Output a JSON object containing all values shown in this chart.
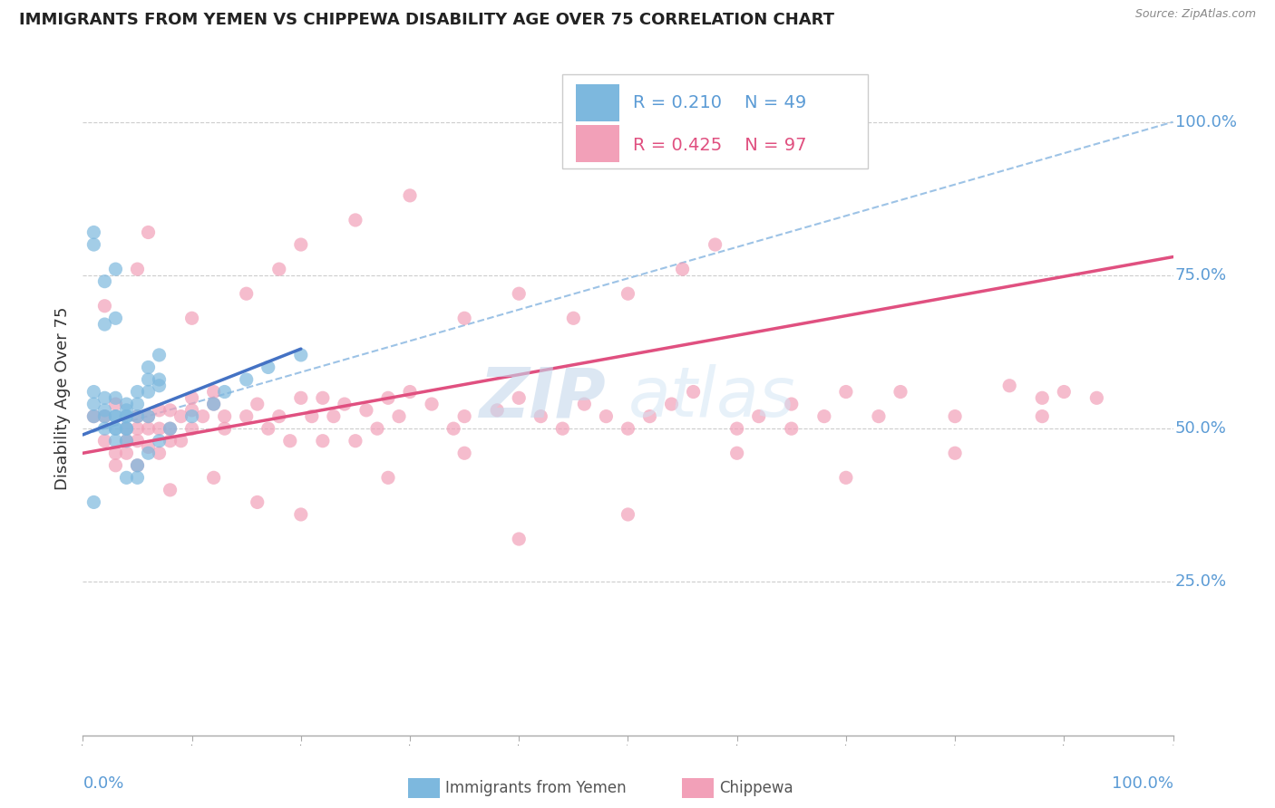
{
  "title": "IMMIGRANTS FROM YEMEN VS CHIPPEWA DISABILITY AGE OVER 75 CORRELATION CHART",
  "source": "Source: ZipAtlas.com",
  "ylabel": "Disability Age Over 75",
  "color_blue": "#7db8de",
  "color_pink": "#f2a0b8",
  "color_blue_line": "#4472c4",
  "color_pink_line": "#e05080",
  "color_dashed": "#9dc3e6",
  "watermark_zip": "ZIP",
  "watermark_atlas": "atlas",
  "blue_points": [
    [
      0.01,
      0.52
    ],
    [
      0.01,
      0.54
    ],
    [
      0.01,
      0.56
    ],
    [
      0.02,
      0.52
    ],
    [
      0.02,
      0.5
    ],
    [
      0.02,
      0.53
    ],
    [
      0.02,
      0.55
    ],
    [
      0.03,
      0.5
    ],
    [
      0.03,
      0.48
    ],
    [
      0.03,
      0.52
    ],
    [
      0.03,
      0.5
    ],
    [
      0.03,
      0.55
    ],
    [
      0.03,
      0.52
    ],
    [
      0.04,
      0.5
    ],
    [
      0.04,
      0.48
    ],
    [
      0.04,
      0.54
    ],
    [
      0.04,
      0.5
    ],
    [
      0.04,
      0.52
    ],
    [
      0.04,
      0.53
    ],
    [
      0.04,
      0.52
    ],
    [
      0.05,
      0.52
    ],
    [
      0.05,
      0.54
    ],
    [
      0.05,
      0.56
    ],
    [
      0.06,
      0.52
    ],
    [
      0.06,
      0.58
    ],
    [
      0.06,
      0.6
    ],
    [
      0.06,
      0.56
    ],
    [
      0.07,
      0.58
    ],
    [
      0.07,
      0.62
    ],
    [
      0.07,
      0.57
    ],
    [
      0.02,
      0.67
    ],
    [
      0.02,
      0.74
    ],
    [
      0.01,
      0.8
    ],
    [
      0.03,
      0.68
    ],
    [
      0.03,
      0.76
    ],
    [
      0.04,
      0.42
    ],
    [
      0.05,
      0.44
    ],
    [
      0.05,
      0.42
    ],
    [
      0.06,
      0.46
    ],
    [
      0.07,
      0.48
    ],
    [
      0.08,
      0.5
    ],
    [
      0.1,
      0.52
    ],
    [
      0.12,
      0.54
    ],
    [
      0.13,
      0.56
    ],
    [
      0.15,
      0.58
    ],
    [
      0.17,
      0.6
    ],
    [
      0.2,
      0.62
    ],
    [
      0.01,
      0.82
    ],
    [
      0.01,
      0.38
    ]
  ],
  "pink_points": [
    [
      0.01,
      0.52
    ],
    [
      0.02,
      0.48
    ],
    [
      0.02,
      0.52
    ],
    [
      0.03,
      0.46
    ],
    [
      0.03,
      0.54
    ],
    [
      0.03,
      0.44
    ],
    [
      0.04,
      0.5
    ],
    [
      0.04,
      0.48
    ],
    [
      0.04,
      0.46
    ],
    [
      0.05,
      0.52
    ],
    [
      0.05,
      0.48
    ],
    [
      0.05,
      0.5
    ],
    [
      0.05,
      0.44
    ],
    [
      0.06,
      0.52
    ],
    [
      0.06,
      0.5
    ],
    [
      0.06,
      0.47
    ],
    [
      0.07,
      0.46
    ],
    [
      0.07,
      0.53
    ],
    [
      0.07,
      0.5
    ],
    [
      0.08,
      0.53
    ],
    [
      0.08,
      0.48
    ],
    [
      0.08,
      0.5
    ],
    [
      0.09,
      0.52
    ],
    [
      0.09,
      0.48
    ],
    [
      0.1,
      0.53
    ],
    [
      0.1,
      0.5
    ],
    [
      0.1,
      0.55
    ],
    [
      0.11,
      0.52
    ],
    [
      0.12,
      0.56
    ],
    [
      0.12,
      0.54
    ],
    [
      0.13,
      0.5
    ],
    [
      0.13,
      0.52
    ],
    [
      0.15,
      0.52
    ],
    [
      0.16,
      0.54
    ],
    [
      0.17,
      0.5
    ],
    [
      0.18,
      0.52
    ],
    [
      0.19,
      0.48
    ],
    [
      0.2,
      0.55
    ],
    [
      0.21,
      0.52
    ],
    [
      0.22,
      0.55
    ],
    [
      0.22,
      0.48
    ],
    [
      0.23,
      0.52
    ],
    [
      0.24,
      0.54
    ],
    [
      0.25,
      0.48
    ],
    [
      0.26,
      0.53
    ],
    [
      0.27,
      0.5
    ],
    [
      0.28,
      0.55
    ],
    [
      0.29,
      0.52
    ],
    [
      0.3,
      0.56
    ],
    [
      0.32,
      0.54
    ],
    [
      0.34,
      0.5
    ],
    [
      0.35,
      0.52
    ],
    [
      0.38,
      0.53
    ],
    [
      0.4,
      0.55
    ],
    [
      0.42,
      0.52
    ],
    [
      0.44,
      0.5
    ],
    [
      0.46,
      0.54
    ],
    [
      0.48,
      0.52
    ],
    [
      0.5,
      0.5
    ],
    [
      0.52,
      0.52
    ],
    [
      0.54,
      0.54
    ],
    [
      0.56,
      0.56
    ],
    [
      0.6,
      0.5
    ],
    [
      0.62,
      0.52
    ],
    [
      0.65,
      0.54
    ],
    [
      0.68,
      0.52
    ],
    [
      0.7,
      0.56
    ],
    [
      0.73,
      0.52
    ],
    [
      0.75,
      0.56
    ],
    [
      0.8,
      0.52
    ],
    [
      0.85,
      0.57
    ],
    [
      0.88,
      0.52
    ],
    [
      0.9,
      0.56
    ],
    [
      0.93,
      0.55
    ],
    [
      0.35,
      0.68
    ],
    [
      0.4,
      0.72
    ],
    [
      0.45,
      0.68
    ],
    [
      0.5,
      0.72
    ],
    [
      0.55,
      0.76
    ],
    [
      0.58,
      0.8
    ],
    [
      0.02,
      0.7
    ],
    [
      0.05,
      0.76
    ],
    [
      0.06,
      0.82
    ],
    [
      0.1,
      0.68
    ],
    [
      0.15,
      0.72
    ],
    [
      0.18,
      0.76
    ],
    [
      0.2,
      0.8
    ],
    [
      0.25,
      0.84
    ],
    [
      0.3,
      0.88
    ],
    [
      0.08,
      0.4
    ],
    [
      0.12,
      0.42
    ],
    [
      0.16,
      0.38
    ],
    [
      0.2,
      0.36
    ],
    [
      0.28,
      0.42
    ],
    [
      0.35,
      0.46
    ],
    [
      0.4,
      0.32
    ],
    [
      0.5,
      0.36
    ],
    [
      0.6,
      0.46
    ],
    [
      0.65,
      0.5
    ],
    [
      0.7,
      0.42
    ],
    [
      0.8,
      0.46
    ],
    [
      0.88,
      0.55
    ]
  ],
  "xlim": [
    0.0,
    1.0
  ],
  "ylim": [
    0.0,
    1.1
  ],
  "yticks": [
    0.25,
    0.5,
    0.75,
    1.0
  ],
  "ytick_labels": [
    "25.0%",
    "50.0%",
    "75.0%",
    "100.0%"
  ],
  "blue_line_x": [
    0.0,
    0.2
  ],
  "blue_line_y_start": 0.49,
  "blue_line_y_end": 0.63,
  "dashed_line_x": [
    0.0,
    1.0
  ],
  "dashed_line_y_start": 0.49,
  "dashed_line_y_end": 1.0,
  "pink_line_x": [
    0.0,
    1.0
  ],
  "pink_line_y_start": 0.46,
  "pink_line_y_end": 0.78
}
